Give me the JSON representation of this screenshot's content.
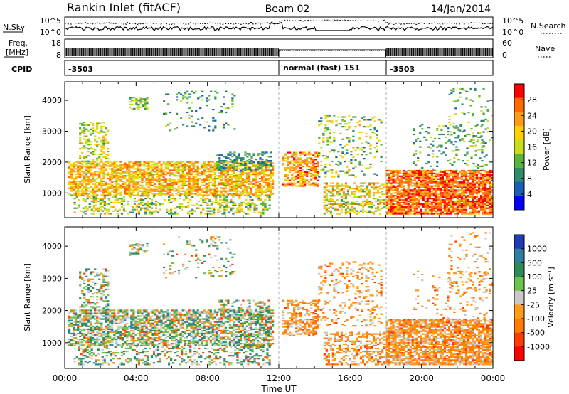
{
  "header": {
    "station": "Rankin Inlet (fitACF)",
    "beam": "Beam 02",
    "date": "14/Jan/2014"
  },
  "noise_panel": {
    "left_label": "N.Sky",
    "right_label": "N.Search",
    "left_ticks": [
      "10^5",
      "10^0"
    ],
    "right_ticks": [
      "10^5",
      "10^0"
    ]
  },
  "freq_panel": {
    "left_label_1": "Freq.",
    "left_label_2": "[MHz]",
    "left_ticks": [
      "18",
      "8"
    ],
    "right_label": "Nave",
    "right_ticks": [
      "60",
      "0"
    ]
  },
  "cpid_panel": {
    "label": "CPID",
    "segments": [
      {
        "text": "-3503",
        "start_hour": 0,
        "end_hour": 12
      },
      {
        "text": "normal (fast) 151",
        "start_hour": 12,
        "end_hour": 18
      },
      {
        "text": "-3503",
        "start_hour": 18,
        "end_hour": 24
      }
    ]
  },
  "power_colorbar": {
    "label": "Power [dB]",
    "ticks": [
      "28",
      "24",
      "20",
      "16",
      "12",
      "8",
      "4"
    ],
    "colors": [
      "#ff0000",
      "#ff6a00",
      "#ff9a1a",
      "#ffd000",
      "#c8dc1e",
      "#5ab43c",
      "#2e8b6e",
      "#1a5fb4",
      "#0000ff"
    ]
  },
  "velocity_colorbar": {
    "label": "Velocity [m s⁻¹]",
    "ticks": [
      "1000",
      "500",
      "100",
      "25",
      "-25",
      "-100",
      "-500",
      "-1000"
    ],
    "colors": [
      "#1e3cb4",
      "#2e7fa0",
      "#2e8b57",
      "#6cc24a",
      "#c8c8c8",
      "#ff9a1a",
      "#ff7a00",
      "#ff3c00",
      "#ff0000"
    ]
  },
  "chart_data": [
    {
      "type": "heatmap",
      "name": "power",
      "ylabel": "Slant Range [km]",
      "xlim": [
        0,
        24
      ],
      "ylim": [
        200,
        4600
      ],
      "yticks": [
        1000,
        2000,
        3000,
        4000
      ],
      "colorbar_label": "Power [dB]",
      "colorbar_range": [
        0,
        30
      ]
    },
    {
      "type": "heatmap",
      "name": "velocity",
      "ylabel": "Slant Range [km]",
      "xlabel": "Time UT",
      "xlim": [
        0,
        24
      ],
      "ylim": [
        200,
        4600
      ],
      "yticks": [
        1000,
        2000,
        3000,
        4000
      ],
      "xticks": [
        "00:00",
        "04:00",
        "08:00",
        "12:00",
        "16:00",
        "20:00",
        "00:00"
      ],
      "colorbar_label": "Velocity [m s⁻¹]",
      "colorbar_range": [
        -1000,
        1000
      ]
    }
  ]
}
